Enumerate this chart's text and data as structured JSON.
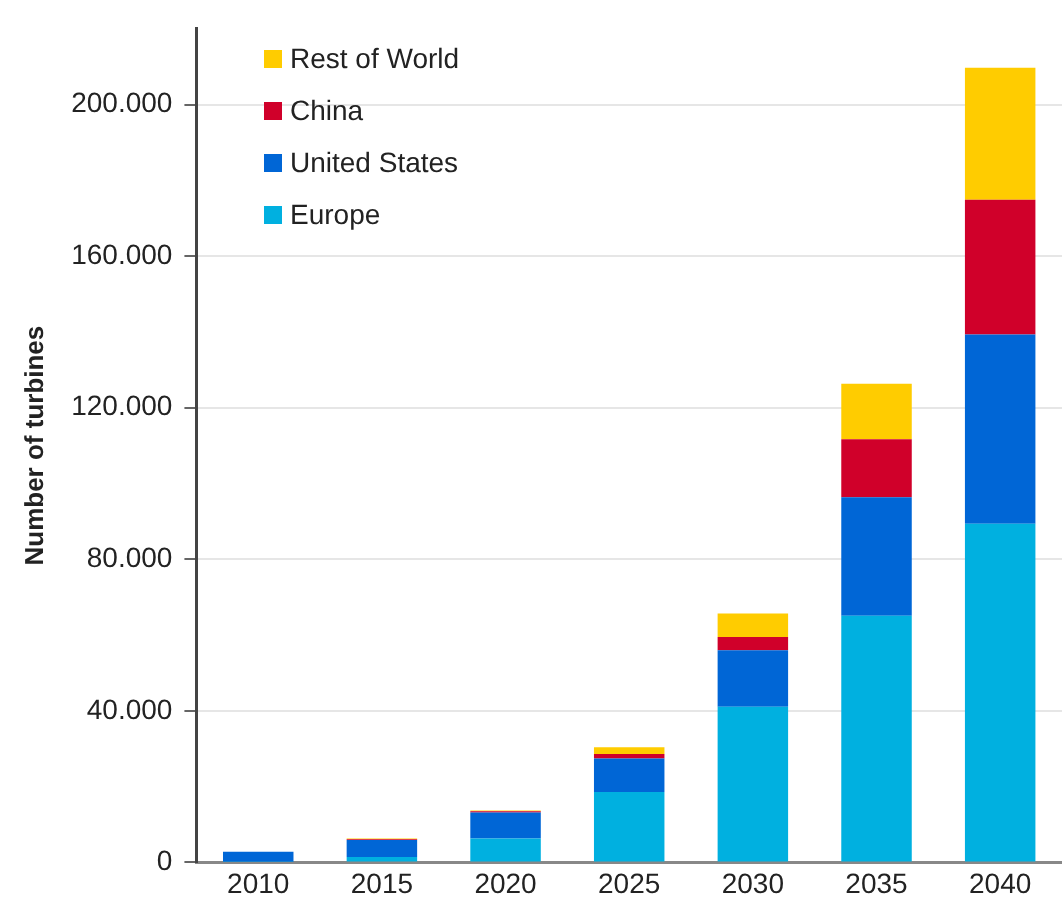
{
  "chart_data": {
    "type": "bar",
    "stacked": true,
    "ylabel": "Number of turbines",
    "categories": [
      "2010",
      "2015",
      "2020",
      "2025",
      "2030",
      "2035",
      "2040"
    ],
    "series": [
      {
        "name": "Europe",
        "color": "#00b0e0",
        "values": [
          200,
          1400,
          6300,
          18600,
          41100,
          65100,
          89400
        ]
      },
      {
        "name": "United States",
        "color": "#0066d6",
        "values": [
          2600,
          4500,
          6900,
          8800,
          14900,
          31300,
          49900
        ]
      },
      {
        "name": "China",
        "color": "#d0002a",
        "values": [
          0,
          200,
          300,
          1200,
          3500,
          15300,
          35600
        ]
      },
      {
        "name": "Rest of World",
        "color": "#ffcc00",
        "values": [
          0,
          200,
          200,
          1800,
          6200,
          14600,
          34800
        ]
      }
    ],
    "ylim": [
      0,
      220000
    ],
    "yticks": [
      {
        "value": 0,
        "label": "0"
      },
      {
        "value": 40000,
        "label": "40.000"
      },
      {
        "value": 80000,
        "label": "80.000"
      },
      {
        "value": 120000,
        "label": "120.000"
      },
      {
        "value": 160000,
        "label": "160.000"
      },
      {
        "value": 200000,
        "label": "200.000"
      }
    ],
    "grid": "y",
    "legend": "top left"
  }
}
